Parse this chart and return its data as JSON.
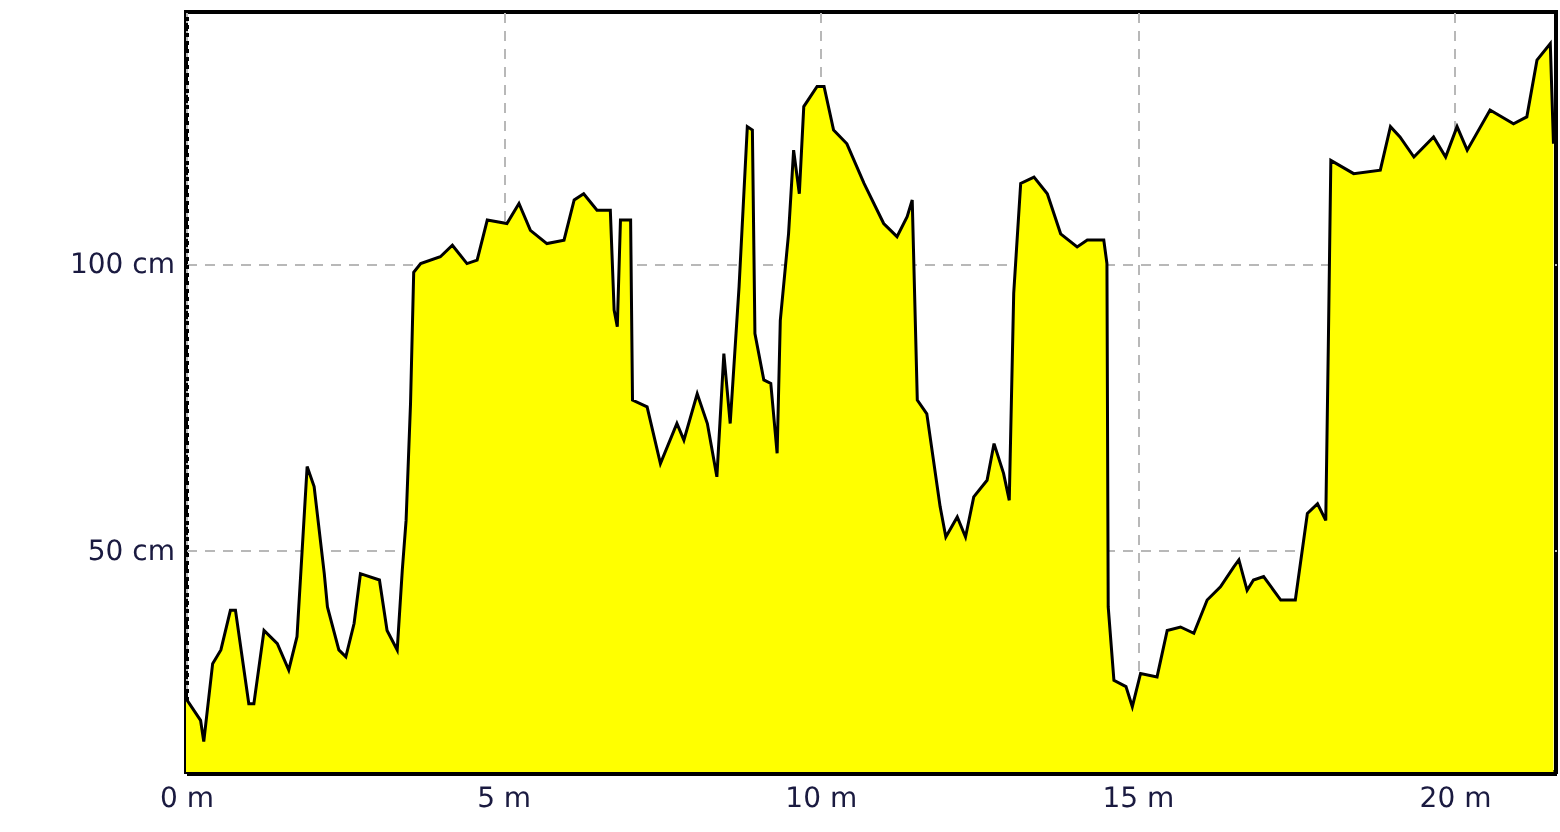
{
  "chart_data": {
    "type": "area",
    "grid": true,
    "line_style": "solid",
    "xlim": [
      0,
      21.6
    ],
    "ylim": [
      11.4,
      144
    ],
    "xticks": [
      {
        "value": 0,
        "label": "0 m"
      },
      {
        "value": 5,
        "label": "5 m"
      },
      {
        "value": 10,
        "label": "10 m"
      },
      {
        "value": 15,
        "label": "15 m"
      },
      {
        "value": 20,
        "label": "20 m"
      }
    ],
    "yticks": [
      {
        "value": 50,
        "label": "50 cm"
      },
      {
        "value": 100,
        "label": "100 cm"
      }
    ],
    "x": [
      0,
      0.23,
      0.28,
      0.42,
      0.55,
      0.7,
      0.78,
      0.99,
      1.07,
      1.23,
      1.44,
      1.62,
      1.75,
      1.91,
      2.02,
      2.18,
      2.23,
      2.41,
      2.52,
      2.65,
      2.75,
      3.05,
      3.17,
      3.33,
      3.41,
      3.47,
      3.54,
      3.59,
      3.7,
      4.01,
      4.2,
      4.43,
      4.59,
      4.75,
      5.06,
      5.25,
      5.43,
      5.69,
      5.96,
      6.12,
      6.27,
      6.48,
      6.69,
      6.75,
      6.8,
      6.85,
      7.01,
      7.04,
      7.27,
      7.48,
      7.74,
      7.85,
      8.06,
      8.22,
      8.37,
      8.48,
      8.58,
      8.72,
      8.85,
      8.93,
      8.97,
      9.11,
      9.22,
      9.32,
      9.37,
      9.5,
      9.58,
      9.67,
      9.74,
      9.95,
      10.06,
      10.21,
      10.42,
      10.69,
      11,
      11.21,
      11.37,
      11.45,
      11.53,
      11.68,
      11.89,
      11.98,
      12.16,
      12.29,
      12.42,
      12.63,
      12.74,
      12.89,
      12.98,
      13.05,
      13.16,
      13.37,
      13.58,
      13.79,
      14.05,
      14.21,
      14.47,
      14.52,
      14.54,
      14.63,
      14.82,
      14.92,
      15.05,
      15.31,
      15.47,
      15.68,
      15.89,
      16.1,
      16.31,
      16.52,
      16.6,
      16.73,
      16.83,
      16.99,
      17.26,
      17.49,
      17.68,
      17.84,
      17.97,
      18.01,
      18.05,
      18.41,
      18.83,
      18.99,
      19.14,
      19.36,
      19.67,
      19.86,
      20.04,
      20.2,
      20.56,
      20.93,
      21.14,
      21.3,
      21.51,
      21.56
    ],
    "series": [
      {
        "color": "#ffff00",
        "values": [
          24.2,
          20.4,
          16.7,
          30.3,
          32.7,
          39.6,
          39.6,
          23.3,
          23.3,
          36.1,
          33.8,
          29.2,
          35,
          64.7,
          61.2,
          46,
          40.2,
          32.7,
          31.5,
          37.3,
          46,
          44.9,
          36.1,
          32.7,
          46.6,
          55.3,
          75.7,
          98.6,
          100.1,
          101.3,
          103.3,
          100.1,
          100.7,
          107.7,
          107.1,
          110.6,
          105.9,
          103.6,
          104.2,
          111.2,
          112.3,
          109.4,
          109.4,
          92,
          89.1,
          107.7,
          107.7,
          76.3,
          75.1,
          65.2,
          72.2,
          69.3,
          77.4,
          72.2,
          62.9,
          84.4,
          72.2,
          96.1,
          124,
          123.4,
          87.9,
          79.8,
          79.2,
          67,
          90.2,
          105.3,
          119.9,
          112.3,
          127.5,
          131,
          131,
          123.4,
          121,
          114.1,
          107.1,
          104.8,
          108.3,
          111.2,
          76.3,
          73.9,
          57.7,
          52.4,
          55.9,
          52.4,
          59.4,
          62.3,
          68.7,
          63.5,
          58.8,
          94.9,
          114.1,
          115.2,
          112.3,
          105.3,
          103,
          104.2,
          104.2,
          100.1,
          40.2,
          27.4,
          26.3,
          22.8,
          28.6,
          28,
          36.1,
          36.7,
          35.6,
          41.4,
          43.7,
          47.2,
          48.4,
          43.1,
          44.9,
          45.5,
          41.4,
          41.4,
          56.5,
          58.2,
          55.3,
          85.6,
          118.1,
          115.8,
          116.4,
          124,
          122.2,
          118.7,
          122.2,
          118.7,
          124,
          119.9,
          126.9,
          124.5,
          125.7,
          135.6,
          138.5,
          121
        ]
      }
    ]
  }
}
